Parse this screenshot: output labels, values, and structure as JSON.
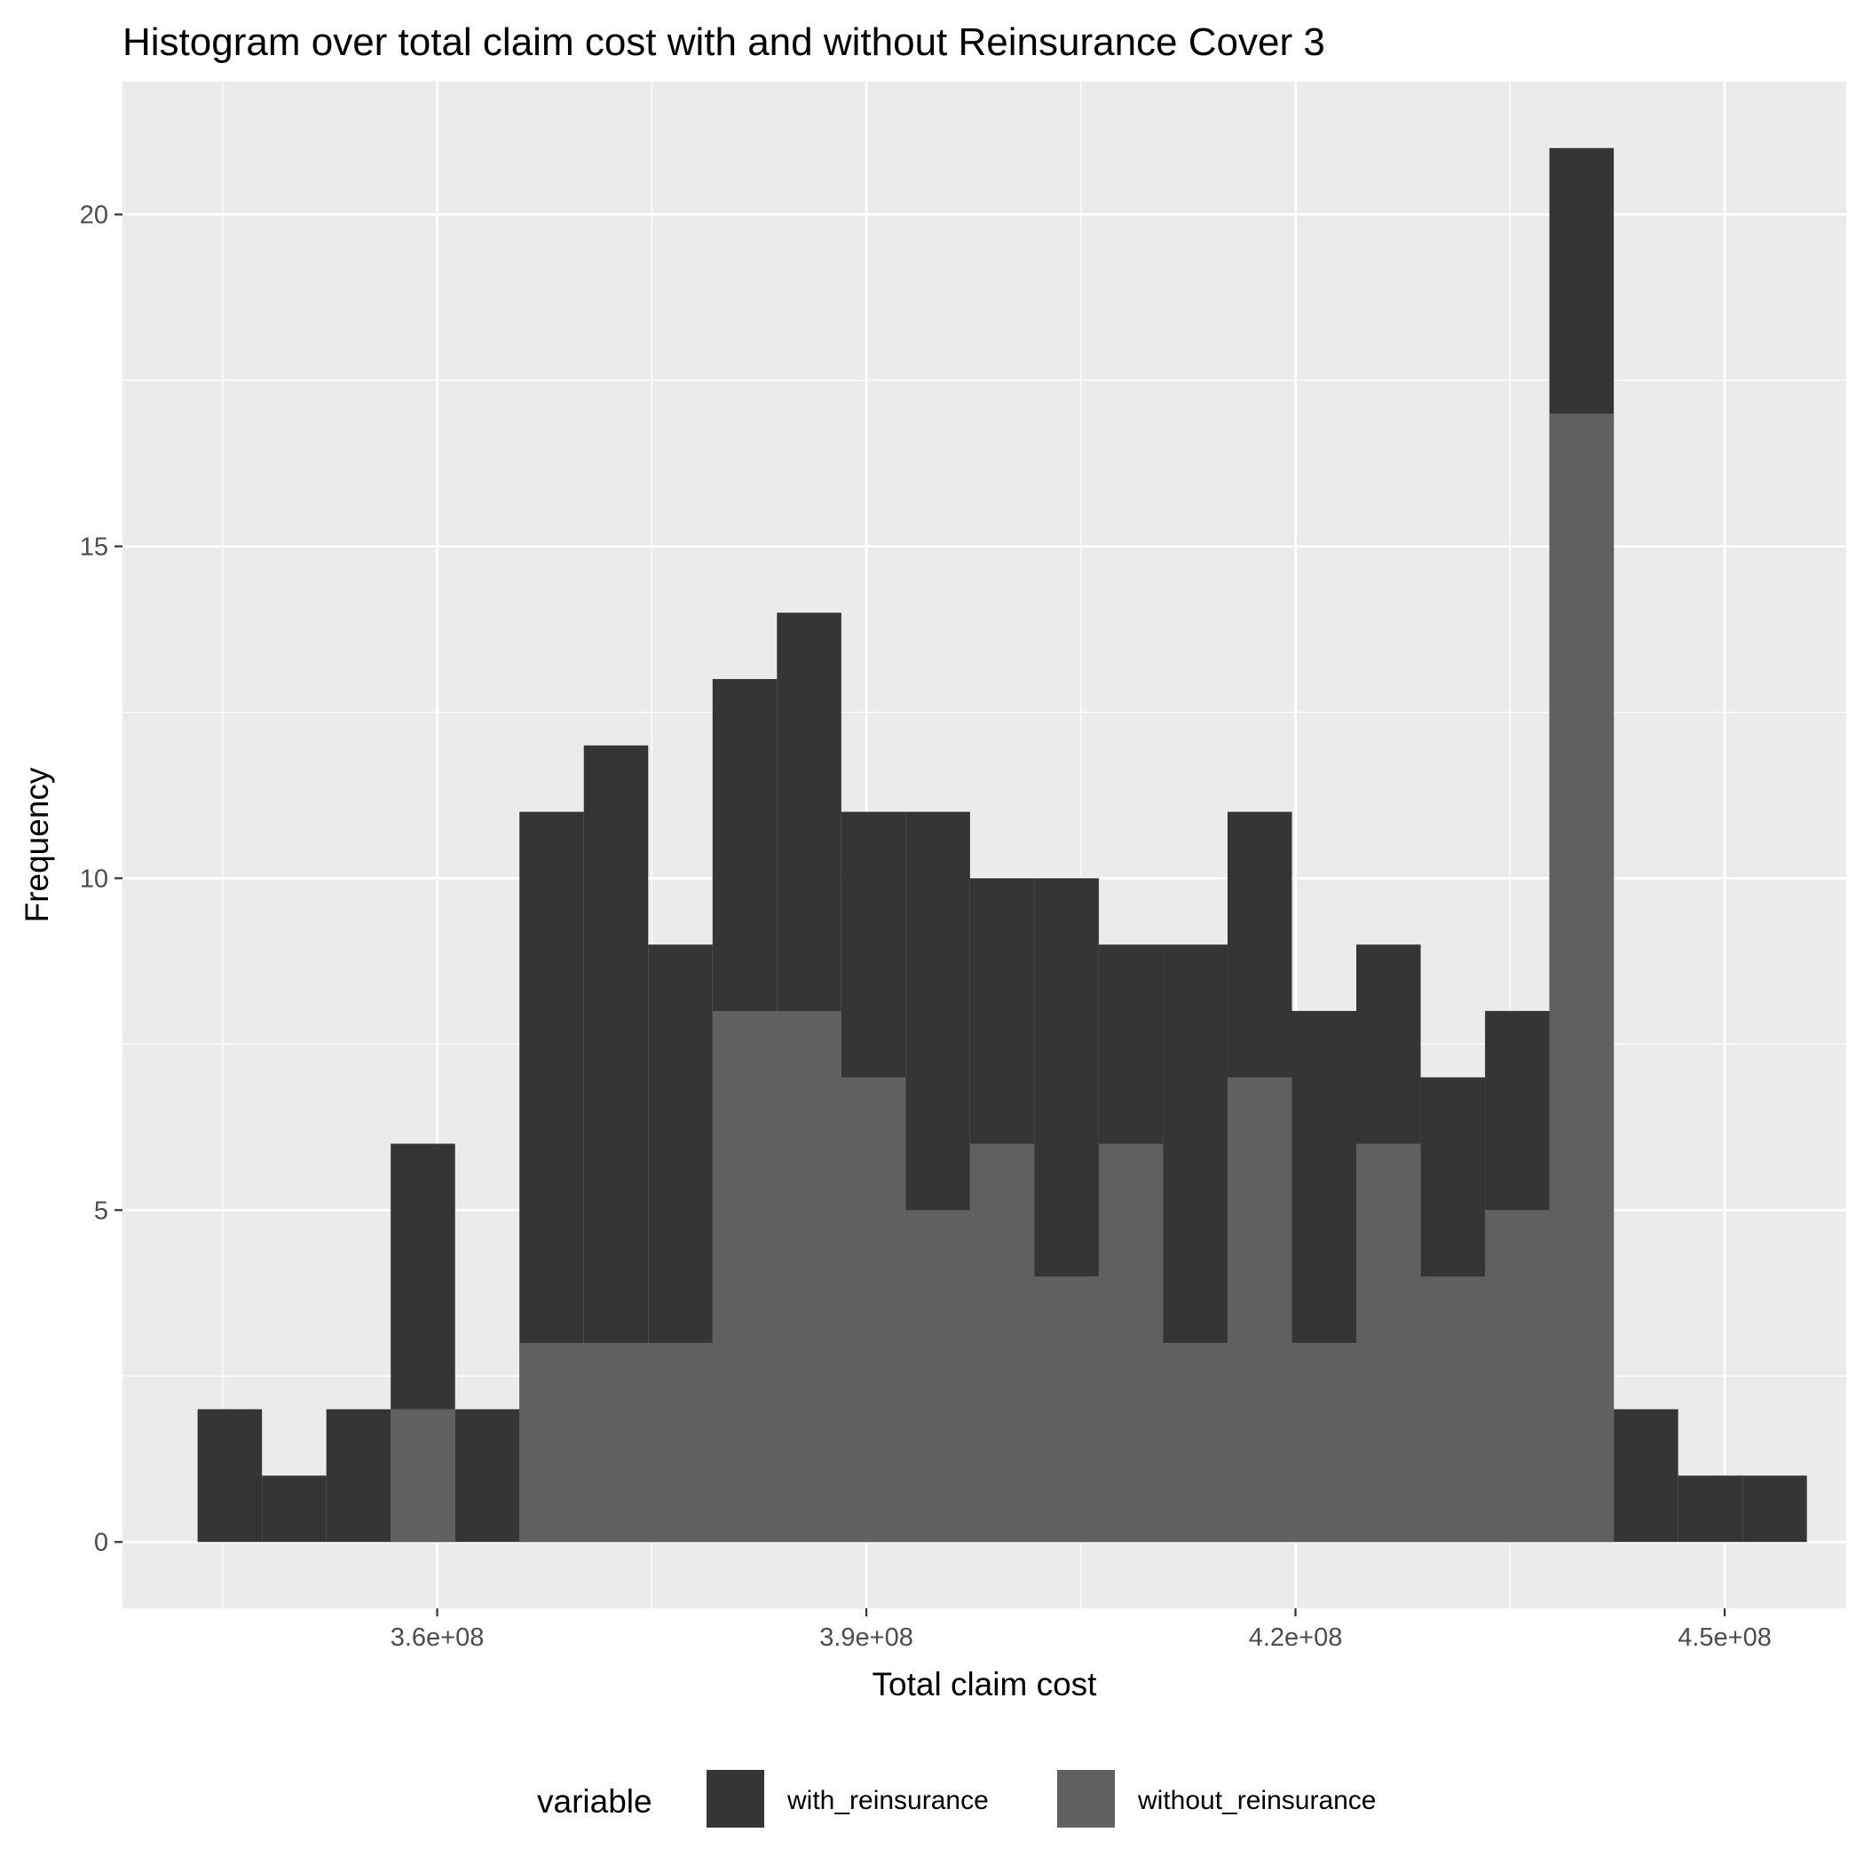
{
  "chart_data": {
    "type": "bar",
    "subtype": "overlapping-histogram",
    "title": "Histogram over total claim cost with and without Reinsurance Cover 3",
    "xlabel": "Total claim cost",
    "ylabel": "Frequency",
    "xlim": [
      338000000,
      458500000
    ],
    "ylim": [
      -1,
      22
    ],
    "xticks": [
      360000000,
      390000000,
      420000000,
      450000000
    ],
    "xtick_labels": [
      "3.6e+08",
      "3.9e+08",
      "4.2e+08",
      "4.5e+08"
    ],
    "yticks": [
      0,
      5,
      10,
      15,
      20
    ],
    "ytick_labels": [
      "0",
      "5",
      "10",
      "15",
      "20"
    ],
    "bin_width": 4500000,
    "bin_starts": [
      343250000,
      347750000,
      352250000,
      356750000,
      361250000,
      365750000,
      370250000,
      374750000,
      379250000,
      383750000,
      388250000,
      392750000,
      397250000,
      401750000,
      406250000,
      410750000,
      415250000,
      419750000,
      424250000,
      428750000,
      433250000,
      437750000,
      442250000,
      446750000,
      451250000
    ],
    "series": [
      {
        "name": "with_reinsurance",
        "color": "#353535",
        "values": [
          2,
          1,
          2,
          6,
          2,
          11,
          12,
          9,
          13,
          14,
          11,
          11,
          10,
          10,
          9,
          9,
          11,
          8,
          9,
          7,
          8,
          21,
          2,
          1,
          1
        ]
      },
      {
        "name": "without_reinsurance",
        "color": "#606060",
        "values": [
          0,
          0,
          0,
          2,
          0,
          3,
          3,
          3,
          8,
          8,
          7,
          5,
          6,
          4,
          6,
          3,
          7,
          3,
          6,
          4,
          5,
          17,
          0,
          0,
          0
        ]
      }
    ],
    "panel_background": "#ebebeb",
    "grid": true,
    "grid_color": "#ffffff",
    "legend": {
      "title": "variable",
      "position": "bottom"
    }
  }
}
